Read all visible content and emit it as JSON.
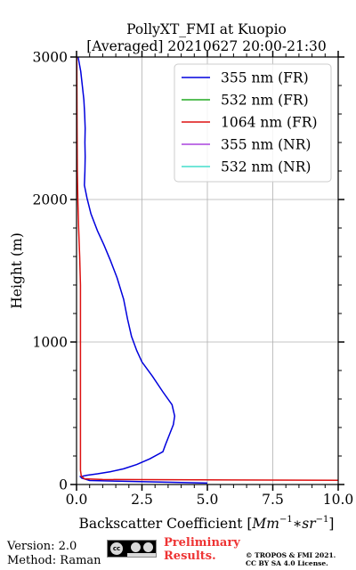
{
  "chart_data": {
    "type": "line",
    "title": "PollyXT_FMI at Kuopio",
    "subtitle": "[Averaged] 20210627 20:00-21:30",
    "xlabel": "Backscatter Coefficient [$Mm^{-1}*sr^{-1}$]",
    "xlabel_text": "Backscatter Coefficient [",
    "xlabel_math": "Mm",
    "xlabel_sup1": "−1",
    "xlabel_star": "∗",
    "xlabel_sr": "sr",
    "xlabel_sup2": "−1",
    "xlabel_end": "]",
    "ylabel": "Height (m)",
    "xlim": [
      0,
      10
    ],
    "ylim": [
      0,
      3000
    ],
    "xticks": [
      "0.0",
      "2.5",
      "5.0",
      "7.5",
      "10.0"
    ],
    "xtick_values": [
      0,
      2.5,
      5,
      7.5,
      10
    ],
    "yticks": [
      "0",
      "1000",
      "2000",
      "3000"
    ],
    "ytick_values": [
      0,
      1000,
      2000,
      3000
    ],
    "grid": true,
    "legend_position": "top-right",
    "series": [
      {
        "name": "355 nm (FR)",
        "color": "#0000dd",
        "points": [
          [
            5.0,
            10
          ],
          [
            0.5,
            28
          ],
          [
            0.2,
            45
          ],
          [
            0.15,
            55
          ],
          [
            0.4,
            65
          ],
          [
            0.8,
            75
          ],
          [
            1.3,
            90
          ],
          [
            1.8,
            110
          ],
          [
            2.3,
            140
          ],
          [
            2.8,
            180
          ],
          [
            3.3,
            230
          ],
          [
            3.4,
            280
          ],
          [
            3.55,
            350
          ],
          [
            3.7,
            420
          ],
          [
            3.75,
            480
          ],
          [
            3.65,
            560
          ],
          [
            3.3,
            650
          ],
          [
            2.9,
            760
          ],
          [
            2.5,
            860
          ],
          [
            2.3,
            940
          ],
          [
            2.1,
            1040
          ],
          [
            1.95,
            1160
          ],
          [
            1.8,
            1300
          ],
          [
            1.55,
            1450
          ],
          [
            1.3,
            1570
          ],
          [
            1.05,
            1680
          ],
          [
            0.8,
            1780
          ],
          [
            0.55,
            1900
          ],
          [
            0.4,
            2010
          ],
          [
            0.3,
            2100
          ],
          [
            0.32,
            2200
          ],
          [
            0.33,
            2300
          ],
          [
            0.32,
            2400
          ],
          [
            0.33,
            2500
          ],
          [
            0.31,
            2600
          ],
          [
            0.28,
            2700
          ],
          [
            0.22,
            2800
          ],
          [
            0.16,
            2900
          ],
          [
            0.06,
            3000
          ]
        ]
      },
      {
        "name": "532 nm (FR)",
        "color": "#22aa22",
        "points": []
      },
      {
        "name": "1064 nm (FR)",
        "color": "#dd1111",
        "points": [
          [
            10.0,
            30
          ],
          [
            1.0,
            35
          ],
          [
            0.3,
            40
          ],
          [
            0.18,
            60
          ],
          [
            0.15,
            100
          ],
          [
            0.15,
            200
          ],
          [
            0.15,
            400
          ],
          [
            0.15,
            600
          ],
          [
            0.15,
            1000
          ],
          [
            0.15,
            1400
          ],
          [
            0.12,
            1600
          ],
          [
            0.08,
            1800
          ],
          [
            0.05,
            2000
          ],
          [
            0.03,
            2200
          ],
          [
            0.02,
            2500
          ],
          [
            0.01,
            3000
          ]
        ]
      },
      {
        "name": "355 nm (NR)",
        "color": "#aa44dd",
        "points": []
      },
      {
        "name": "532 nm (NR)",
        "color": "#44ddcc",
        "points": []
      }
    ]
  },
  "footer": {
    "version": "Version: 2.0",
    "method": "Method: Raman",
    "badge_cc": "cc",
    "preliminary_line1": "Preliminary",
    "preliminary_line2": "Results.",
    "copyright_line1": "© TROPOS & FMI 2021.",
    "copyright_line2": "CC BY SA 4.0 License."
  }
}
